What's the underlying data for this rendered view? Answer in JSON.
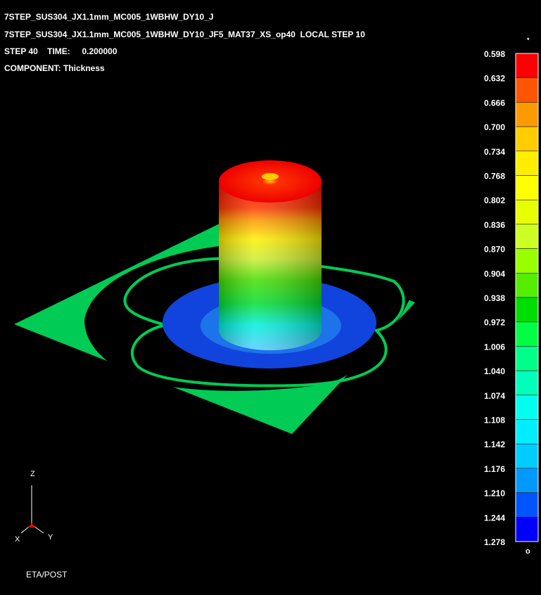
{
  "header": {
    "lines": [
      "7STEP_SUS304_JX1.1mm_MC005_1WBHW_DY10_J",
      "7STEP_SUS304_JX1.1mm_MC005_1WBHW_DY10_JF5_MAT37_XS_op40  LOCAL STEP 10",
      "STEP 40    TIME:     0.200000",
      "COMPONENT: Thickness"
    ]
  },
  "legend": {
    "top_marker": "*",
    "bottom_marker": "o",
    "labels": [
      "0.598",
      "0.632",
      "0.666",
      "0.700",
      "0.734",
      "0.768",
      "0.802",
      "0.836",
      "0.870",
      "0.904",
      "0.938",
      "0.972",
      "1.006",
      "1.040",
      "1.074",
      "1.108",
      "1.142",
      "1.176",
      "1.210",
      "1.244",
      "1.278"
    ],
    "colors": [
      "#ff0000",
      "#ff5500",
      "#ff9900",
      "#ffcc00",
      "#ffee00",
      "#ffff00",
      "#e8ff00",
      "#ccff22",
      "#99ff00",
      "#55ee00",
      "#00dd00",
      "#00ff44",
      "#00ff88",
      "#00ffbb",
      "#00ffee",
      "#00eeff",
      "#00ccff",
      "#0099ff",
      "#0055ff",
      "#0000ff"
    ]
  },
  "axes": {
    "z": "Z",
    "x": "X",
    "y": "Y"
  },
  "footer": {
    "app": "ETA/POST"
  }
}
